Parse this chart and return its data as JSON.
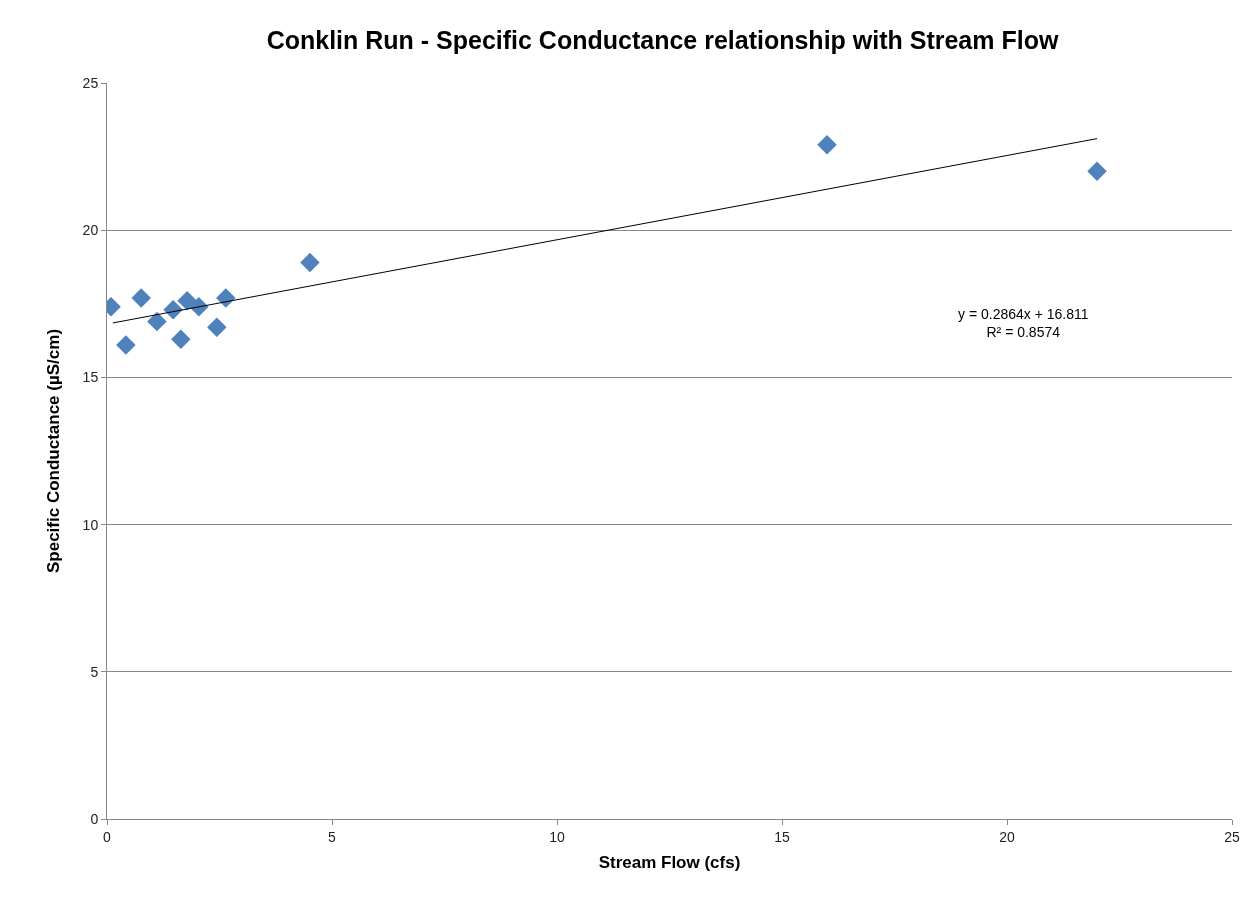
{
  "chart_data": {
    "type": "scatter",
    "title": "Conklin Run - Specific Conductance relationship with Stream Flow",
    "xlabel": "Stream Flow (cfs)",
    "ylabel": "Specific Conductance (µS/cm)",
    "series": [
      {
        "color": "#4f81bd",
        "marker": "diamond",
        "x": [
          0.09,
          0.42,
          0.76,
          1.11,
          1.47,
          1.64,
          1.78,
          2.04,
          2.44,
          2.64,
          4.51,
          16.0,
          22.0
        ],
        "values": [
          17.4,
          16.1,
          17.7,
          16.9,
          17.3,
          16.3,
          17.6,
          17.4,
          16.7,
          17.7,
          18.9,
          22.9,
          22.0
        ]
      },
      {
        "type": "line",
        "color": "#000000",
        "marker": "none",
        "x": [
          0.13,
          22.0
        ],
        "values": [
          16.85,
          23.11
        ]
      }
    ],
    "annotations": [
      "y = 0.2864x + 16.811\nR² = 0.8574"
    ],
    "xlim": [
      0,
      25
    ],
    "xticks": [
      0,
      5,
      10,
      15,
      20,
      25
    ],
    "ylim": [
      0,
      25
    ],
    "yticks": [
      0,
      5,
      10,
      15,
      20,
      25
    ],
    "grid": "y"
  }
}
